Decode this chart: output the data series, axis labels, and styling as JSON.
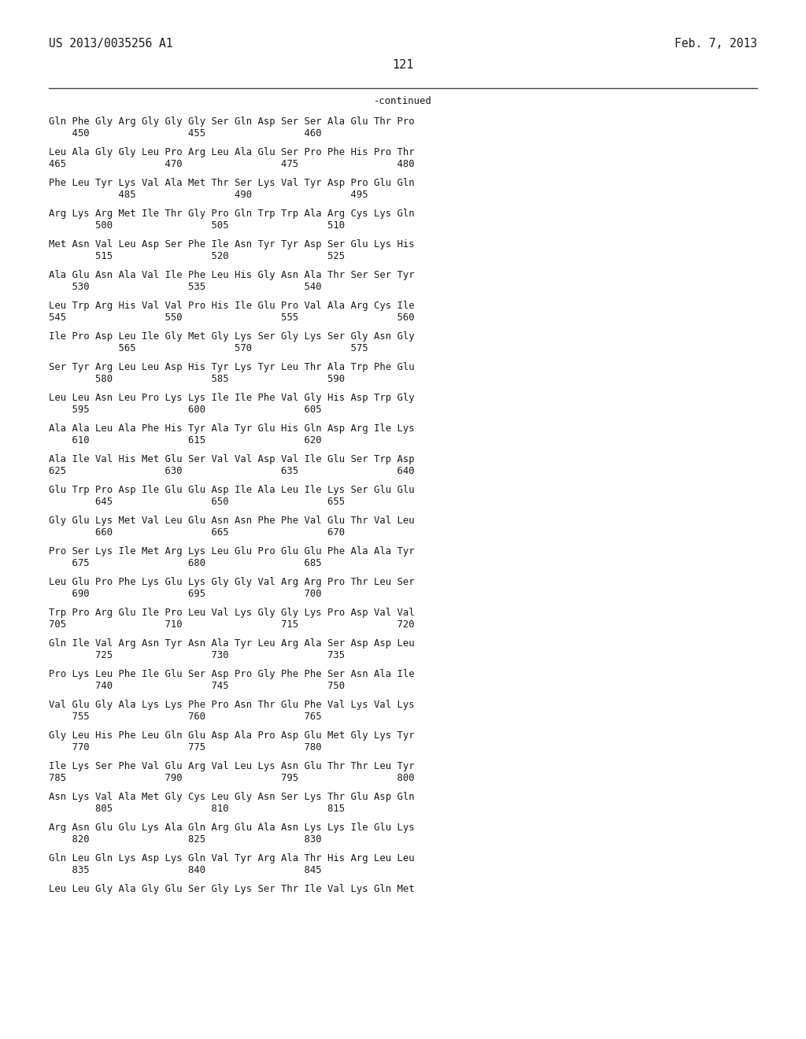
{
  "header_left": "US 2013/0035256 A1",
  "header_right": "Feb. 7, 2013",
  "page_number": "121",
  "continued_label": "-continued",
  "seq_blocks": [
    [
      "Gln Phe Gly Arg Gly Gly Gly Ser Gln Asp Ser Ser Ala Glu Thr Pro",
      "    450                 455                 460"
    ],
    [
      "Leu Ala Gly Gly Leu Pro Arg Leu Ala Glu Ser Pro Phe His Pro Thr",
      "465                 470                 475                 480"
    ],
    [
      "Phe Leu Tyr Lys Val Ala Met Thr Ser Lys Val Tyr Asp Pro Glu Gln",
      "            485                 490                 495"
    ],
    [
      "Arg Lys Arg Met Ile Thr Gly Pro Gln Trp Trp Ala Arg Cys Lys Gln",
      "        500                 505                 510"
    ],
    [
      "Met Asn Val Leu Asp Ser Phe Ile Asn Tyr Tyr Asp Ser Glu Lys His",
      "        515                 520                 525"
    ],
    [
      "Ala Glu Asn Ala Val Ile Phe Leu His Gly Asn Ala Thr Ser Ser Tyr",
      "    530                 535                 540"
    ],
    [
      "Leu Trp Arg His Val Val Pro His Ile Glu Pro Val Ala Arg Cys Ile",
      "545                 550                 555                 560"
    ],
    [
      "Ile Pro Asp Leu Ile Gly Met Gly Lys Ser Gly Lys Ser Gly Asn Gly",
      "            565                 570                 575"
    ],
    [
      "Ser Tyr Arg Leu Leu Asp His Tyr Lys Tyr Leu Thr Ala Trp Phe Glu",
      "        580                 585                 590"
    ],
    [
      "Leu Leu Asn Leu Pro Lys Lys Ile Ile Phe Val Gly His Asp Trp Gly",
      "    595                 600                 605"
    ],
    [
      "Ala Ala Leu Ala Phe His Tyr Ala Tyr Glu His Gln Asp Arg Ile Lys",
      "    610                 615                 620"
    ],
    [
      "Ala Ile Val His Met Glu Ser Val Val Asp Val Ile Glu Ser Trp Asp",
      "625                 630                 635                 640"
    ],
    [
      "Glu Trp Pro Asp Ile Glu Glu Asp Ile Ala Leu Ile Lys Ser Glu Glu",
      "        645                 650                 655"
    ],
    [
      "Gly Glu Lys Met Val Leu Glu Asn Asn Phe Phe Val Glu Thr Val Leu",
      "        660                 665                 670"
    ],
    [
      "Pro Ser Lys Ile Met Arg Lys Leu Glu Pro Glu Glu Phe Ala Ala Tyr",
      "    675                 680                 685"
    ],
    [
      "Leu Glu Pro Phe Lys Glu Lys Gly Gly Val Arg Arg Pro Thr Leu Ser",
      "    690                 695                 700"
    ],
    [
      "Trp Pro Arg Glu Ile Pro Leu Val Lys Gly Gly Lys Pro Asp Val Val",
      "705                 710                 715                 720"
    ],
    [
      "Gln Ile Val Arg Asn Tyr Asn Ala Tyr Leu Arg Ala Ser Asp Asp Leu",
      "        725                 730                 735"
    ],
    [
      "Pro Lys Leu Phe Ile Glu Ser Asp Pro Gly Phe Phe Ser Asn Ala Ile",
      "        740                 745                 750"
    ],
    [
      "Val Glu Gly Ala Lys Lys Phe Pro Asn Thr Glu Phe Val Lys Val Lys",
      "    755                 760                 765"
    ],
    [
      "Gly Leu His Phe Leu Gln Glu Asp Ala Pro Asp Glu Met Gly Lys Tyr",
      "    770                 775                 780"
    ],
    [
      "Ile Lys Ser Phe Val Glu Arg Val Leu Lys Asn Glu Thr Thr Leu Tyr",
      "785                 790                 795                 800"
    ],
    [
      "Asn Lys Val Ala Met Gly Cys Leu Gly Asn Ser Lys Thr Glu Asp Gln",
      "        805                 810                 815"
    ],
    [
      "Arg Asn Glu Glu Lys Ala Gln Arg Glu Ala Asn Lys Lys Ile Glu Lys",
      "    820                 825                 830"
    ],
    [
      "Gln Leu Gln Lys Asp Lys Gln Val Tyr Arg Ala Thr His Arg Leu Leu",
      "    835                 840                 845"
    ],
    [
      "Leu Leu Gly Ala Gly Glu Ser Gly Lys Ser Thr Ile Val Lys Gln Met",
      ""
    ]
  ]
}
